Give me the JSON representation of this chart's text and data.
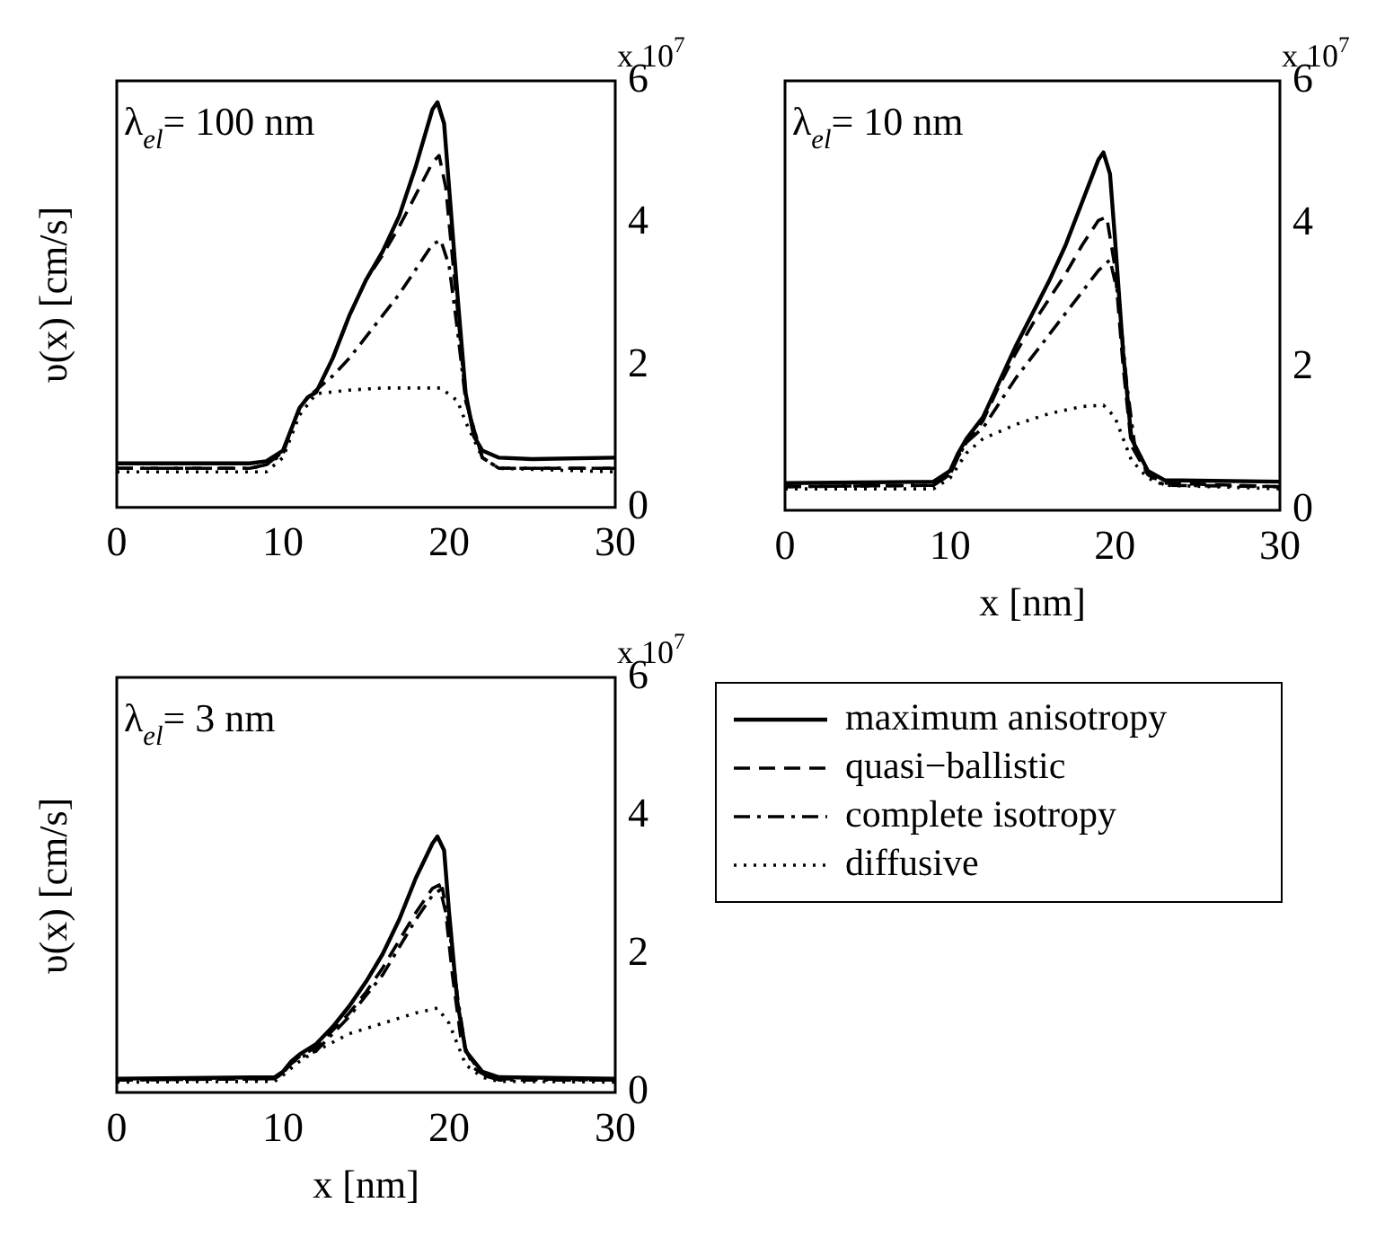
{
  "chart_data": [
    {
      "type": "line",
      "ylabel": "υ(x)  [cm/s]",
      "annotations": [
        "λ$_{el}$= 100 nm",
        "x 10$^{7}$"
      ],
      "xlim": [
        0,
        30
      ],
      "xticks": [
        0,
        10,
        20,
        30
      ],
      "ylim": [
        0,
        6
      ],
      "yticks": [
        0,
        2,
        4,
        6
      ],
      "series": [
        {
          "color": "#000000",
          "line_style": "solid",
          "x": [
            0,
            8,
            9,
            10,
            10.5,
            11,
            11.5,
            12,
            13,
            14,
            15,
            16,
            17,
            18,
            19,
            19.3,
            19.7,
            20,
            20.5,
            21,
            21.5,
            22,
            23,
            25,
            30
          ],
          "values": [
            0.62,
            0.62,
            0.65,
            0.8,
            1.1,
            1.4,
            1.55,
            1.62,
            2.1,
            2.7,
            3.2,
            3.6,
            4.1,
            4.8,
            5.6,
            5.7,
            5.4,
            4.5,
            3.0,
            1.6,
            1.0,
            0.8,
            0.7,
            0.68,
            0.7
          ]
        },
        {
          "color": "#000000",
          "line_style": "dashed",
          "x": [
            0,
            8,
            9,
            10,
            10.5,
            11,
            11.5,
            12,
            13,
            14,
            15,
            16,
            17,
            18,
            19,
            19.4,
            19.8,
            20,
            20.5,
            21,
            22,
            23,
            30
          ],
          "values": [
            0.55,
            0.55,
            0.6,
            0.78,
            1.1,
            1.4,
            1.55,
            1.62,
            2.1,
            2.7,
            3.2,
            3.55,
            3.95,
            4.4,
            4.85,
            4.95,
            4.5,
            4.0,
            2.8,
            1.5,
            0.7,
            0.55,
            0.55
          ]
        },
        {
          "color": "#000000",
          "line_style": "dashdot",
          "x": [
            0,
            8,
            9,
            10,
            10.5,
            11,
            11.5,
            12,
            13,
            14,
            15,
            16,
            17,
            18,
            19,
            19.5,
            20,
            20.5,
            21,
            22,
            23,
            30
          ],
          "values": [
            0.55,
            0.55,
            0.6,
            0.75,
            1.1,
            1.4,
            1.55,
            1.65,
            1.85,
            2.1,
            2.4,
            2.7,
            3.0,
            3.35,
            3.7,
            3.76,
            3.4,
            2.5,
            1.5,
            0.7,
            0.55,
            0.55
          ]
        },
        {
          "color": "#000000",
          "line_style": "dotted",
          "x": [
            0,
            9,
            10,
            11,
            12,
            14,
            16,
            18,
            19.5,
            20.5,
            21,
            22,
            23,
            30
          ],
          "values": [
            0.5,
            0.5,
            0.7,
            1.3,
            1.6,
            1.65,
            1.68,
            1.68,
            1.68,
            1.5,
            1.2,
            0.7,
            0.55,
            0.5
          ]
        }
      ]
    },
    {
      "type": "line",
      "xlabel": "x [nm]",
      "annotations": [
        "λ$_{el}$= 10 nm",
        "x 10$^{7}$"
      ],
      "xlim": [
        0,
        30
      ],
      "xticks": [
        0,
        10,
        20,
        30
      ],
      "ylim": [
        0,
        6
      ],
      "yticks": [
        0,
        2,
        4,
        6
      ],
      "series": [
        {
          "color": "#000000",
          "line_style": "solid",
          "x": [
            0,
            9,
            10,
            10.5,
            11,
            12,
            13,
            14,
            15,
            16,
            17,
            18,
            19,
            19.3,
            19.7,
            20,
            20.5,
            21,
            22,
            23,
            30
          ],
          "values": [
            0.38,
            0.4,
            0.55,
            0.8,
            1.0,
            1.3,
            1.8,
            2.3,
            2.75,
            3.2,
            3.7,
            4.3,
            4.9,
            5.0,
            4.7,
            3.8,
            2.2,
            1.0,
            0.55,
            0.42,
            0.4
          ]
        },
        {
          "color": "#000000",
          "line_style": "dashed",
          "x": [
            0,
            9,
            10,
            10.5,
            11,
            12,
            13,
            14,
            15,
            16,
            17,
            18,
            19,
            19.5,
            20,
            20.5,
            21,
            22,
            23,
            30
          ],
          "values": [
            0.33,
            0.35,
            0.5,
            0.75,
            0.95,
            1.25,
            1.75,
            2.2,
            2.6,
            2.95,
            3.3,
            3.7,
            4.05,
            4.1,
            3.4,
            2.0,
            0.9,
            0.5,
            0.38,
            0.33
          ]
        },
        {
          "color": "#000000",
          "line_style": "dashdot",
          "x": [
            0,
            9,
            10,
            10.5,
            11,
            12,
            13,
            14,
            15,
            16,
            17,
            18,
            19,
            19.7,
            20.2,
            20.7,
            21.2,
            22,
            23,
            30
          ],
          "values": [
            0.33,
            0.35,
            0.5,
            0.75,
            0.95,
            1.15,
            1.5,
            1.85,
            2.15,
            2.45,
            2.75,
            3.05,
            3.35,
            3.5,
            3.0,
            1.8,
            0.9,
            0.5,
            0.35,
            0.33
          ]
        },
        {
          "color": "#000000",
          "line_style": "dotted",
          "x": [
            0,
            9,
            10,
            11,
            12,
            14,
            16,
            18,
            19.3,
            20,
            20.5,
            21,
            22,
            23,
            30
          ],
          "values": [
            0.3,
            0.3,
            0.45,
            0.8,
            1.0,
            1.2,
            1.35,
            1.45,
            1.47,
            1.3,
            1.0,
            0.7,
            0.45,
            0.35,
            0.3
          ]
        }
      ]
    },
    {
      "type": "line",
      "xlabel": "x [nm]",
      "ylabel": "υ(x)  [cm/s]",
      "annotations": [
        "λ$_{el}$= 3 nm",
        "x 10$^{7}$"
      ],
      "xlim": [
        0,
        30
      ],
      "xticks": [
        0,
        10,
        20,
        30
      ],
      "ylim": [
        0,
        6
      ],
      "yticks": [
        0,
        2,
        4,
        6
      ],
      "legend": "right",
      "series": [
        {
          "name": "maximum anisotropy",
          "color": "#000000",
          "line_style": "solid",
          "x": [
            0,
            9.5,
            10,
            10.5,
            11,
            12,
            13,
            14,
            15,
            16,
            17,
            18,
            19,
            19.3,
            19.7,
            20,
            20.5,
            21,
            22,
            23,
            30
          ],
          "values": [
            0.2,
            0.22,
            0.3,
            0.45,
            0.55,
            0.7,
            0.95,
            1.25,
            1.6,
            2.0,
            2.5,
            3.1,
            3.6,
            3.7,
            3.5,
            2.6,
            1.3,
            0.6,
            0.3,
            0.22,
            0.2
          ]
        },
        {
          "name": "quasi−ballistic",
          "color": "#000000",
          "line_style": "dashed",
          "x": [
            0,
            9.5,
            10,
            10.5,
            11,
            12,
            13,
            14,
            15,
            16,
            17,
            18,
            19,
            19.4,
            19.8,
            20.2,
            20.7,
            21.5,
            22.5,
            30
          ],
          "values": [
            0.18,
            0.2,
            0.28,
            0.42,
            0.52,
            0.65,
            0.9,
            1.15,
            1.45,
            1.8,
            2.2,
            2.6,
            2.95,
            3.0,
            2.6,
            1.7,
            0.8,
            0.35,
            0.2,
            0.18
          ]
        },
        {
          "name": "complete isotropy",
          "color": "#000000",
          "line_style": "dashdot",
          "x": [
            0,
            9.5,
            10,
            10.5,
            11,
            12,
            13,
            14,
            15,
            16,
            17,
            18,
            19,
            19.6,
            20,
            20.5,
            21,
            22,
            23,
            30
          ],
          "values": [
            0.18,
            0.2,
            0.28,
            0.42,
            0.5,
            0.6,
            0.85,
            1.1,
            1.4,
            1.7,
            2.1,
            2.5,
            2.85,
            2.95,
            2.4,
            1.4,
            0.6,
            0.25,
            0.18,
            0.18
          ]
        },
        {
          "name": "diffusive",
          "color": "#000000",
          "line_style": "dotted",
          "x": [
            0,
            9.5,
            10,
            11,
            12,
            14,
            16,
            18,
            19.3,
            20,
            20.5,
            21,
            22,
            23,
            30
          ],
          "values": [
            0.15,
            0.16,
            0.25,
            0.45,
            0.6,
            0.85,
            1.0,
            1.15,
            1.22,
            1.0,
            0.7,
            0.4,
            0.22,
            0.16,
            0.15
          ]
        }
      ]
    }
  ]
}
